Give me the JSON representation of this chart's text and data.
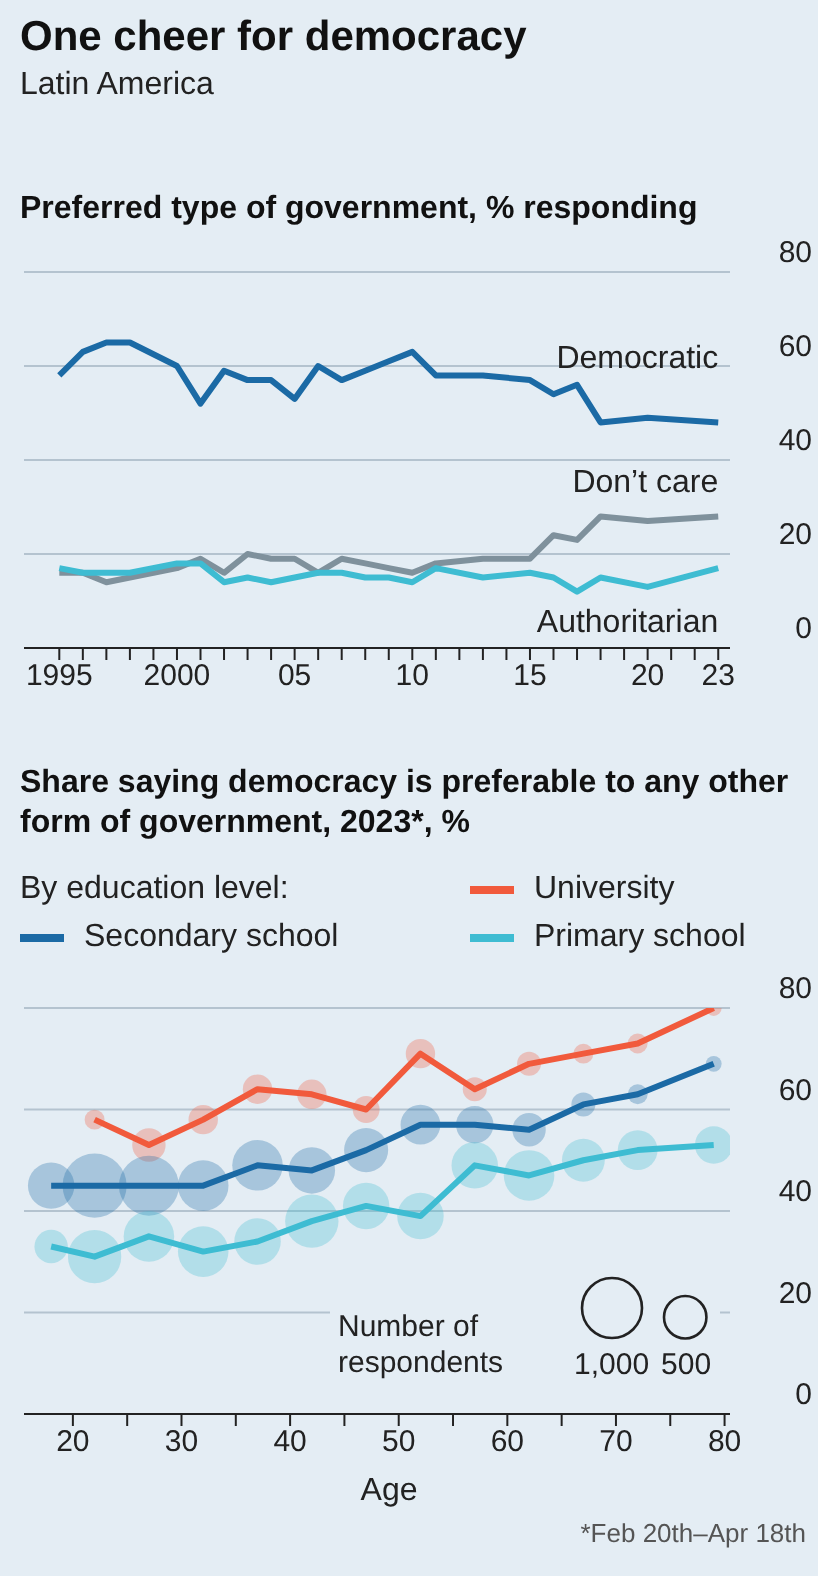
{
  "chart_data": [
    {
      "type": "line",
      "title": "One cheer for democracy",
      "subtitle": "Latin America",
      "ylabel": "Preferred type of government, % responding",
      "x": [
        1995,
        1996,
        1997,
        1998,
        2000,
        2001,
        2002,
        2003,
        2004,
        2005,
        2006,
        2007,
        2008,
        2009,
        2010,
        2011,
        2013,
        2015,
        2016,
        2017,
        2018,
        2020,
        2023
      ],
      "series": [
        {
          "name": "Democratic",
          "color": "#1b6aa5",
          "values": [
            58,
            63,
            65,
            65,
            60,
            52,
            59,
            57,
            57,
            53,
            60,
            57,
            59,
            61,
            63,
            58,
            58,
            57,
            54,
            56,
            48,
            49,
            48
          ]
        },
        {
          "name": "Don’t care",
          "color": "#7f919c",
          "values": [
            16,
            16,
            14,
            15,
            17,
            19,
            16,
            20,
            19,
            19,
            16,
            19,
            18,
            17,
            16,
            18,
            19,
            19,
            24,
            23,
            28,
            27,
            28
          ]
        },
        {
          "name": "Authoritarian",
          "color": "#3ebcd2",
          "values": [
            17,
            16,
            16,
            16,
            18,
            18,
            14,
            15,
            14,
            15,
            16,
            16,
            15,
            15,
            14,
            17,
            15,
            16,
            15,
            12,
            15,
            13,
            17
          ]
        }
      ],
      "xlim": [
        1993.5,
        2023.5
      ],
      "xticks": [
        1995,
        {
          "value": 1996,
          "label": null
        },
        {
          "value": 1997,
          "label": null
        },
        {
          "value": 1998,
          "label": null
        },
        {
          "value": 1999,
          "label": null
        },
        2000,
        {
          "value": 2001,
          "label": null
        },
        {
          "value": 2002,
          "label": null
        },
        {
          "value": 2003,
          "label": null
        },
        {
          "value": 2004,
          "label": null
        },
        {
          "value": 2005,
          "label": "05"
        },
        {
          "value": 2006,
          "label": null
        },
        {
          "value": 2007,
          "label": null
        },
        {
          "value": 2008,
          "label": null
        },
        {
          "value": 2009,
          "label": null
        },
        {
          "value": 2010,
          "label": "10"
        },
        {
          "value": 2011,
          "label": null
        },
        {
          "value": 2012,
          "label": null
        },
        {
          "value": 2013,
          "label": null
        },
        {
          "value": 2014,
          "label": null
        },
        {
          "value": 2015,
          "label": "15"
        },
        {
          "value": 2016,
          "label": null
        },
        {
          "value": 2017,
          "label": null
        },
        {
          "value": 2018,
          "label": null
        },
        {
          "value": 2019,
          "label": null
        },
        {
          "value": 2020,
          "label": "20"
        },
        {
          "value": 2021,
          "label": null
        },
        {
          "value": 2022,
          "label": null
        },
        {
          "value": 2023,
          "label": "23"
        }
      ],
      "ylim": [
        0,
        80
      ],
      "yticks": [
        0,
        20,
        40,
        60,
        80
      ],
      "grid": "y",
      "marker": "none",
      "line_style": "solid"
    },
    {
      "type": "bubble",
      "title": "Share saying democracy is preferable to any other form of government, 2023*, %",
      "xlabel": "Age",
      "legend_title": "By education level:",
      "series": [
        {
          "color": "#f15a3c",
          "x": [
            22,
            27,
            32,
            37,
            42,
            47,
            52,
            57,
            62,
            67,
            72,
            79
          ],
          "values": [
            58,
            53,
            58,
            64,
            63,
            60,
            71,
            64,
            69,
            71,
            73,
            80
          ],
          "sizes": [
            110,
            310,
            240,
            240,
            240,
            200,
            240,
            160,
            160,
            110,
            110,
            70
          ]
        },
        {
          "color": "#1b6aa5",
          "x": [
            18,
            22,
            27,
            32,
            37,
            42,
            47,
            52,
            57,
            62,
            67,
            72,
            79
          ],
          "values": [
            45,
            45,
            45,
            45,
            49,
            48,
            52,
            57,
            57,
            56,
            61,
            63,
            69
          ],
          "sizes": [
            600,
            1140,
            1000,
            710,
            710,
            600,
            540,
            440,
            390,
            310,
            160,
            110,
            70
          ]
        },
        {
          "color": "#3ebcd2",
          "x": [
            18,
            22,
            27,
            32,
            37,
            42,
            47,
            52,
            57,
            62,
            67,
            72,
            79
          ],
          "values": [
            33,
            31,
            35,
            32,
            34,
            38,
            41,
            39,
            49,
            47,
            50,
            52,
            53
          ],
          "sizes": [
            310,
            790,
            710,
            710,
            600,
            790,
            600,
            600,
            600,
            710,
            510,
            440,
            390
          ]
        },
        {
          "type": "line",
          "marker": "none",
          "name": "University",
          "color": "#f15a3c",
          "x": [
            22,
            27,
            32,
            37,
            42,
            47,
            52,
            57,
            62,
            67,
            72,
            79
          ],
          "values": [
            58,
            53,
            58,
            64,
            63,
            60,
            71,
            64,
            69,
            71,
            73,
            80
          ]
        },
        {
          "type": "line",
          "marker": "none",
          "name": "Secondary school",
          "color": "#1b6aa5",
          "x": [
            18,
            22,
            27,
            32,
            37,
            42,
            47,
            52,
            57,
            62,
            67,
            72,
            79
          ],
          "values": [
            45,
            45,
            45,
            45,
            49,
            48,
            52,
            57,
            57,
            56,
            61,
            63,
            69
          ]
        },
        {
          "type": "line",
          "marker": "none",
          "name": "Primary school",
          "color": "#3ebcd2",
          "x": [
            18,
            22,
            27,
            32,
            37,
            42,
            47,
            52,
            57,
            62,
            67,
            72,
            79
          ],
          "values": [
            33,
            31,
            35,
            32,
            34,
            38,
            41,
            39,
            49,
            47,
            50,
            52,
            53
          ]
        }
      ],
      "size_legend": [
        {
          "value": 1000,
          "label": "1,000"
        },
        500
      ],
      "xlim": [
        15.5,
        80.5
      ],
      "xticks": [
        20,
        {
          "value": 25,
          "label": null
        },
        30,
        {
          "value": 35,
          "label": null
        },
        40,
        {
          "value": 45,
          "label": null
        },
        50,
        {
          "value": 55,
          "label": null
        },
        60,
        {
          "value": 65,
          "label": null
        },
        70,
        {
          "value": 75,
          "label": null
        },
        80
      ],
      "ylim": [
        0,
        80
      ],
      "yticks": [
        0,
        20,
        40,
        60,
        80
      ],
      "grid": "y",
      "legend": "top",
      "line_style": "solid",
      "annotations": [
        "Number of respondents",
        "*Feb 20th–Apr 18th"
      ]
    }
  ]
}
